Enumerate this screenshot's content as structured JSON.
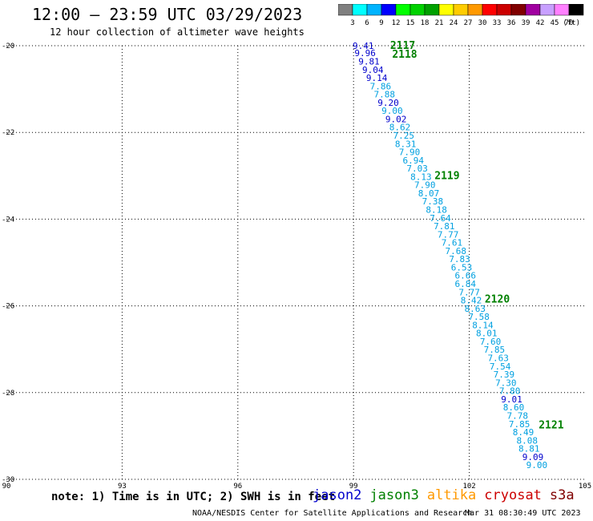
{
  "header": {
    "title": "12:00 – 23:59 UTC 03/29/2023",
    "subtitle": "12 hour collection of altimeter wave heights"
  },
  "colorbar": {
    "colors": [
      "#808080",
      "#00ffff",
      "#00b4ff",
      "#0000ff",
      "#00ff00",
      "#00d200",
      "#00a000",
      "#ffff00",
      "#ffcc00",
      "#ff9900",
      "#ff0000",
      "#cc0000",
      "#800000",
      "#a000a0",
      "#c8a0ff",
      "#ff80ff",
      "#000000"
    ],
    "labels": [
      "3",
      "6",
      "9",
      "12",
      "15",
      "18",
      "21",
      "24",
      "27",
      "30",
      "33",
      "36",
      "39",
      "42",
      "45",
      "70"
    ],
    "unit": "(ft)"
  },
  "map": {
    "lon_range": [
      90,
      105
    ],
    "lat_range": [
      -30,
      -20
    ],
    "lat_ticks": [
      "-20",
      "-22",
      "-24",
      "-26",
      "-28",
      "-30"
    ],
    "lon_ticks": [
      "90",
      "93",
      "96",
      "99",
      "102",
      "105"
    ],
    "observations": [
      {
        "lon": 99.25,
        "lat": -20.0,
        "v": "9.41",
        "c": "#0000cc"
      },
      {
        "lon": 99.3,
        "lat": -20.17,
        "v": "9.96",
        "c": "#0000cc"
      },
      {
        "lon": 99.4,
        "lat": -20.36,
        "v": "9.81",
        "c": "#0000cc"
      },
      {
        "lon": 99.5,
        "lat": -20.55,
        "v": "9.04",
        "c": "#0000cc"
      },
      {
        "lon": 99.6,
        "lat": -20.74,
        "v": "9.14",
        "c": "#0000cc"
      },
      {
        "lon": 99.7,
        "lat": -20.93,
        "v": "7.86",
        "c": "#00a0e0"
      },
      {
        "lon": 99.8,
        "lat": -21.12,
        "v": "7.88",
        "c": "#00a0e0"
      },
      {
        "lon": 99.9,
        "lat": -21.31,
        "v": "9.20",
        "c": "#0000cc"
      },
      {
        "lon": 100.0,
        "lat": -21.5,
        "v": "9.00",
        "c": "#00a0e0"
      },
      {
        "lon": 100.1,
        "lat": -21.69,
        "v": "9.02",
        "c": "#0000cc"
      },
      {
        "lon": 100.2,
        "lat": -21.88,
        "v": "8.62",
        "c": "#00a0e0"
      },
      {
        "lon": 100.3,
        "lat": -22.07,
        "v": "7.25",
        "c": "#00a0e0"
      },
      {
        "lon": 100.35,
        "lat": -22.26,
        "v": "8.31",
        "c": "#00a0e0"
      },
      {
        "lon": 100.45,
        "lat": -22.45,
        "v": "7.90",
        "c": "#00a0e0"
      },
      {
        "lon": 100.55,
        "lat": -22.64,
        "v": "6.94",
        "c": "#00a0e0"
      },
      {
        "lon": 100.65,
        "lat": -22.83,
        "v": "7.03",
        "c": "#00a0e0"
      },
      {
        "lon": 100.75,
        "lat": -23.02,
        "v": "8.13",
        "c": "#00a0e0"
      },
      {
        "lon": 100.85,
        "lat": -23.21,
        "v": "7.90",
        "c": "#00a0e0"
      },
      {
        "lon": 100.95,
        "lat": -23.4,
        "v": "8.07",
        "c": "#00a0e0"
      },
      {
        "lon": 101.05,
        "lat": -23.59,
        "v": "7.38",
        "c": "#00a0e0"
      },
      {
        "lon": 101.15,
        "lat": -23.78,
        "v": "8.18",
        "c": "#00a0e0"
      },
      {
        "lon": 101.25,
        "lat": -23.97,
        "v": "7.64",
        "c": "#00a0e0"
      },
      {
        "lon": 101.35,
        "lat": -24.16,
        "v": "7.81",
        "c": "#00a0e0"
      },
      {
        "lon": 101.45,
        "lat": -24.35,
        "v": "7.77",
        "c": "#00a0e0"
      },
      {
        "lon": 101.55,
        "lat": -24.54,
        "v": "7.61",
        "c": "#00a0e0"
      },
      {
        "lon": 101.65,
        "lat": -24.73,
        "v": "7.68",
        "c": "#00a0e0"
      },
      {
        "lon": 101.75,
        "lat": -24.92,
        "v": "7.83",
        "c": "#00a0e0"
      },
      {
        "lon": 101.8,
        "lat": -25.11,
        "v": "6.53",
        "c": "#00a0e0"
      },
      {
        "lon": 101.9,
        "lat": -25.3,
        "v": "6.66",
        "c": "#00a0e0"
      },
      {
        "lon": 101.9,
        "lat": -25.49,
        "v": "6.84",
        "c": "#00a0e0"
      },
      {
        "lon": 102.0,
        "lat": -25.68,
        "v": "7.77",
        "c": "#00a0e0"
      },
      {
        "lon": 102.05,
        "lat": -25.87,
        "v": "8.42",
        "c": "#00a0e0"
      },
      {
        "lon": 102.15,
        "lat": -26.06,
        "v": "8.63",
        "c": "#00a0e0"
      },
      {
        "lon": 102.25,
        "lat": -26.25,
        "v": "7.58",
        "c": "#00a0e0"
      },
      {
        "lon": 102.35,
        "lat": -26.44,
        "v": "8.14",
        "c": "#00a0e0"
      },
      {
        "lon": 102.45,
        "lat": -26.63,
        "v": "8.01",
        "c": "#00a0e0"
      },
      {
        "lon": 102.55,
        "lat": -26.82,
        "v": "7.60",
        "c": "#00a0e0"
      },
      {
        "lon": 102.65,
        "lat": -27.01,
        "v": "7.85",
        "c": "#00a0e0"
      },
      {
        "lon": 102.75,
        "lat": -27.2,
        "v": "7.63",
        "c": "#00a0e0"
      },
      {
        "lon": 102.8,
        "lat": -27.39,
        "v": "7.54",
        "c": "#00a0e0"
      },
      {
        "lon": 102.9,
        "lat": -27.58,
        "v": "7.39",
        "c": "#00a0e0"
      },
      {
        "lon": 102.95,
        "lat": -27.77,
        "v": "7.30",
        "c": "#00a0e0"
      },
      {
        "lon": 103.05,
        "lat": -27.96,
        "v": "7.80",
        "c": "#00a0e0"
      },
      {
        "lon": 103.1,
        "lat": -28.15,
        "v": "9.01",
        "c": "#0000cc"
      },
      {
        "lon": 103.15,
        "lat": -28.34,
        "v": "8.60",
        "c": "#00a0e0"
      },
      {
        "lon": 103.25,
        "lat": -28.53,
        "v": "7.78",
        "c": "#00a0e0"
      },
      {
        "lon": 103.3,
        "lat": -28.72,
        "v": "7.85",
        "c": "#00a0e0"
      },
      {
        "lon": 103.4,
        "lat": -28.91,
        "v": "8.49",
        "c": "#00a0e0"
      },
      {
        "lon": 103.5,
        "lat": -29.1,
        "v": "8.08",
        "c": "#00a0e0"
      },
      {
        "lon": 103.55,
        "lat": -29.29,
        "v": "8.81",
        "c": "#00a0e0"
      },
      {
        "lon": 103.65,
        "lat": -29.48,
        "v": "9.09",
        "c": "#0000cc"
      },
      {
        "lon": 103.75,
        "lat": -29.67,
        "v": "9.00",
        "c": "#00a0e0"
      }
    ],
    "cycles": [
      {
        "lon": 99.95,
        "lat": -20.0,
        "label": "2117"
      },
      {
        "lon": 100.0,
        "lat": -20.2,
        "label": "2118"
      },
      {
        "lon": 101.1,
        "lat": -23.0,
        "label": "2119"
      },
      {
        "lon": 102.4,
        "lat": -25.85,
        "label": "2120"
      },
      {
        "lon": 103.8,
        "lat": -28.75,
        "label": "2121"
      }
    ]
  },
  "note": "note: 1) Time is in UTC; 2) SWH is in feet",
  "legend": [
    {
      "name": "jason2",
      "color": "#0000cc"
    },
    {
      "name": "jason3",
      "color": "#008000"
    },
    {
      "name": "altika",
      "color": "#ff9900"
    },
    {
      "name": "cryosat",
      "color": "#cc0000"
    },
    {
      "name": "s3a",
      "color": "#800000"
    }
  ],
  "footer": {
    "center": "NOAA/NESDIS Center for Satellite Applications and Research",
    "timestamp": "Mar 31 08:30:49 UTC 2023"
  }
}
